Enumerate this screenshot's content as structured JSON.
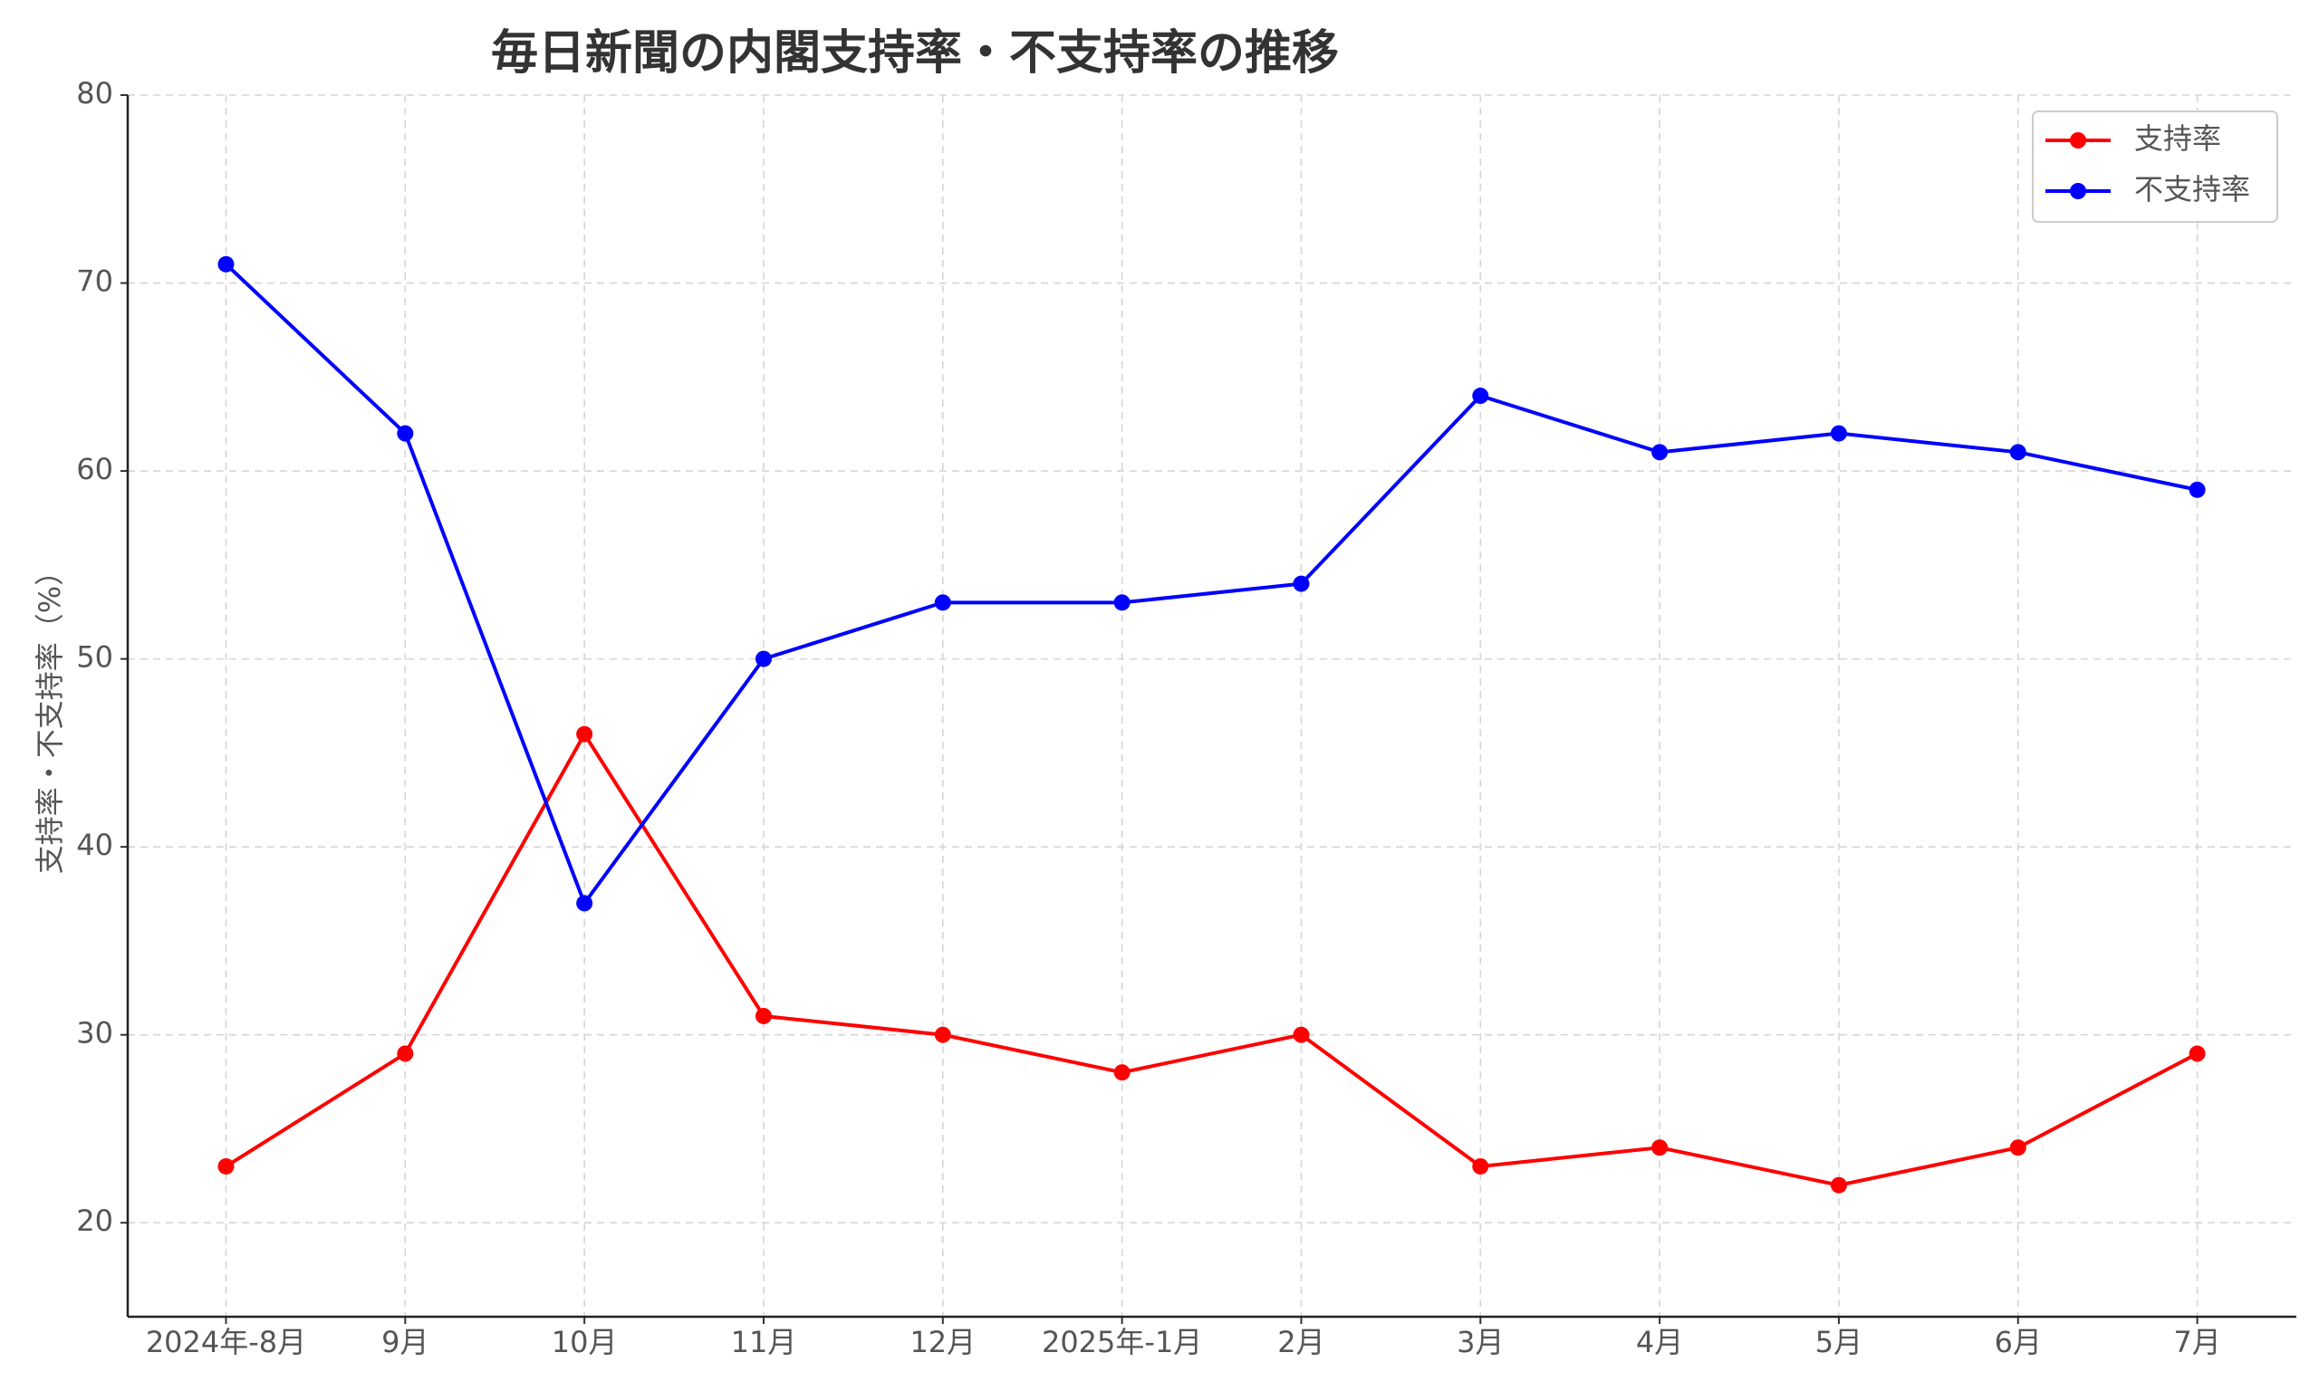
{
  "chart_data": {
    "type": "line",
    "title": "毎日新聞の内閣支持率・不支持率の推移",
    "y_label": "支持率・不支持率（%）",
    "categories": [
      "2024年-8月",
      "9月",
      "10月",
      "11月",
      "12月",
      "2025年-1月",
      "2月",
      "3月",
      "4月",
      "5月",
      "6月",
      "7月"
    ],
    "series": [
      {
        "name": "支持率",
        "color": "#ff0000",
        "values": [
          23,
          29,
          46,
          31,
          30,
          28,
          30,
          23,
          24,
          22,
          24,
          29
        ]
      },
      {
        "name": "不支持率",
        "color": "#0000ff",
        "values": [
          71,
          62,
          37,
          50,
          53,
          53,
          54,
          64,
          61,
          62,
          61,
          59
        ]
      }
    ],
    "ylim": [
      15,
      80
    ],
    "yticks": [
      20,
      30,
      40,
      50,
      60,
      70,
      80
    ],
    "grid": true,
    "legend": "upper right"
  }
}
